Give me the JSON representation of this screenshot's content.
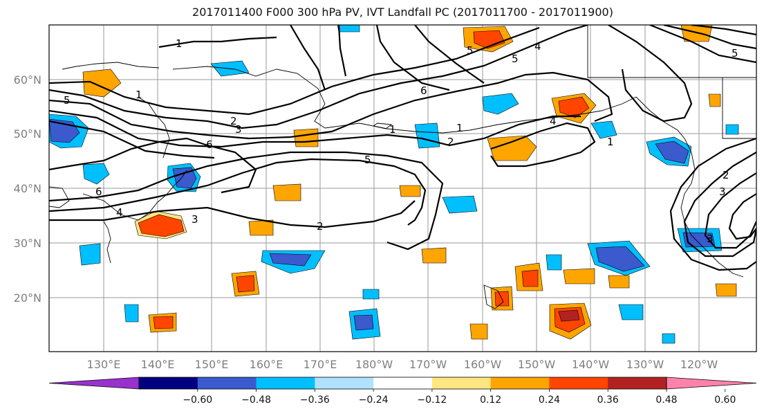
{
  "title": "2017011400 F000 300 hPa PV, IVT Landfall PC (2017011700 - 2017011900)",
  "map": {
    "lat_labels": [
      "60°N",
      "50°N",
      "40°N",
      "30°N",
      "20°N"
    ],
    "lon_labels": [
      "130°E",
      "140°E",
      "150°E",
      "160°E",
      "170°E",
      "180°W",
      "170°W",
      "160°W",
      "150°W",
      "140°W",
      "130°W",
      "120°W"
    ],
    "contour_labels": [
      "1",
      "5",
      "1",
      "2",
      "6",
      "3",
      "1",
      "2",
      "6",
      "5",
      "4",
      "5",
      "4",
      "2",
      "3",
      "6",
      "1",
      "5",
      "4",
      "2",
      "1",
      "3",
      "3",
      "5"
    ]
  },
  "colorbar": {
    "colors": [
      "#9932cc",
      "#000080",
      "#3a5acd",
      "#00bfff",
      "#b0e2ff",
      "#ffffff",
      "#ffe680",
      "#ffa500",
      "#ff4500",
      "#b22222",
      "#ff82ab"
    ],
    "tick_labels": [
      "−0.60",
      "−0.48",
      "−0.36",
      "−0.24",
      "−0.12",
      "0.12",
      "0.24",
      "0.36",
      "0.48",
      "0.60"
    ]
  }
}
